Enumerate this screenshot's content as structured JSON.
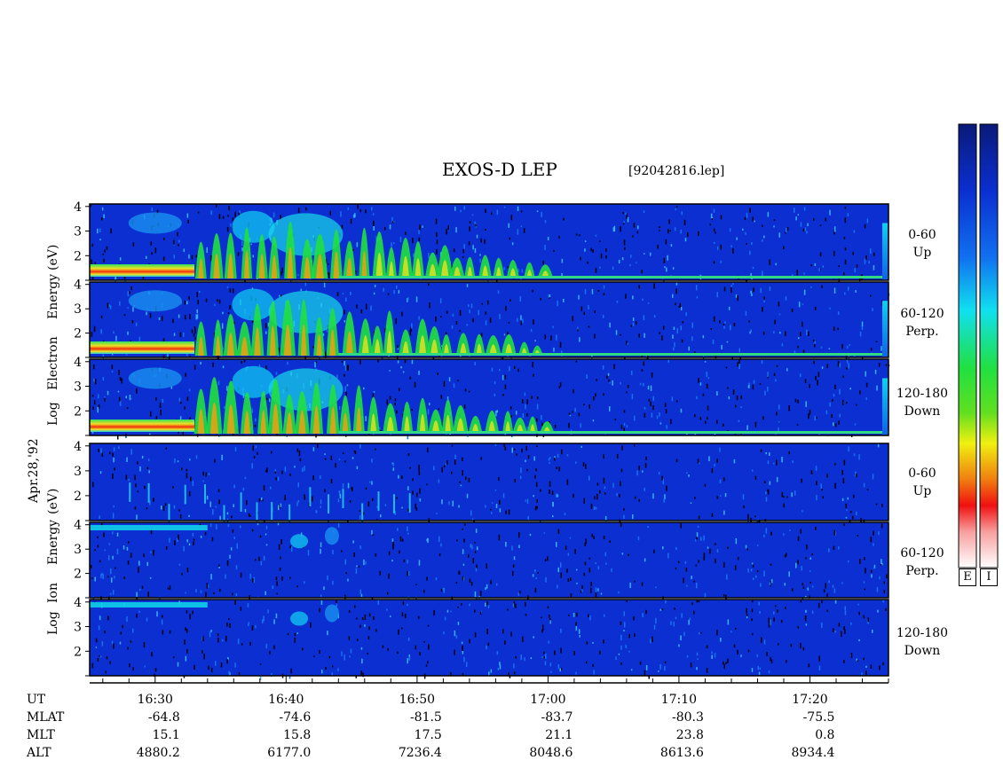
{
  "header": {
    "title": "EXOS-D LEP",
    "filename": "[92042816.lep]",
    "date_label": "Apr.28,'92"
  },
  "axis_groups": {
    "electron": [
      "Log",
      "Electron",
      "Energy",
      "(eV)"
    ],
    "ion": [
      "Log",
      "Ion",
      "Energy",
      "(eV)"
    ]
  },
  "panels": [
    {
      "name": "electron-up",
      "species": "electron",
      "line1": "0-60",
      "line2": "Up"
    },
    {
      "name": "electron-perp",
      "species": "electron",
      "line1": "60-120",
      "line2": "Perp."
    },
    {
      "name": "electron-down",
      "species": "electron",
      "line1": "120-180",
      "line2": "Down"
    },
    {
      "name": "ion-up",
      "species": "ion",
      "line1": "0-60",
      "line2": "Up"
    },
    {
      "name": "ion-perp",
      "species": "ion",
      "line1": "60-120",
      "line2": "Perp."
    },
    {
      "name": "ion-down",
      "species": "ion",
      "line1": "120-180",
      "line2": "Down"
    }
  ],
  "colorbars": [
    {
      "label": "E"
    },
    {
      "label": "I"
    }
  ],
  "chart_data": {
    "type": "heatmap",
    "title": "EXOS-D LEP",
    "ylabel_electron": "Log Electron Energy (eV)",
    "ylabel_ion": "Log Ion Energy (eV)",
    "y_ticks": [
      "1",
      "2",
      "3",
      "4"
    ],
    "ylim": [
      1,
      4.1
    ],
    "time_range_minutes": [
      25,
      86
    ],
    "time_ticks_minutes": [
      30,
      40,
      50,
      60,
      70,
      80
    ],
    "ephemeris": {
      "row_labels": [
        "UT",
        "MLAT",
        "MLT",
        "ALT"
      ],
      "UT": [
        "16:30",
        "16:40",
        "16:50",
        "17:00",
        "17:10",
        "17:20"
      ],
      "MLAT": [
        "-64.8",
        "-74.6",
        "-81.5",
        "-83.7",
        "-80.3",
        "-75.5"
      ],
      "MLT": [
        "15.1",
        "15.8",
        "17.5",
        "21.1",
        "23.8",
        "0.8"
      ],
      "ALT": [
        "4880.2",
        "6177.0",
        "7236.4",
        "8048.6",
        "8613.6",
        "8934.4"
      ]
    },
    "colors": {
      "background": "#0b2fd1",
      "low": "#1040e8",
      "cyan": "#10d0f0",
      "green": "#30e030",
      "yellow": "#f0f010",
      "red": "#f01010"
    }
  }
}
